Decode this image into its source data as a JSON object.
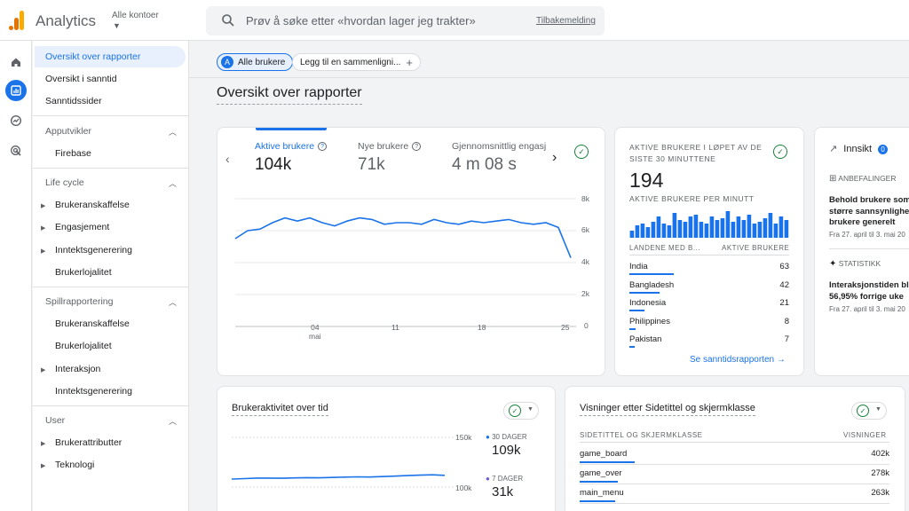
{
  "header": {
    "app_title": "Analytics",
    "account_label": "Alle kontoer",
    "search_placeholder": "Prøv å søke etter «hvordan lager jeg trakter»",
    "feedback_link": "Tilbakemelding"
  },
  "sidebar": {
    "items_top": [
      "Oversikt over rapporter",
      "Oversikt i sanntid",
      "Sanntidssider"
    ],
    "section_apputvikler": "Apputvikler",
    "firebase": "Firebase",
    "section_lifecycle": "Life cycle",
    "lifecycle_items": [
      "Brukeranskaffelse",
      "Engasjement",
      "Inntektsgenerering",
      "Brukerlojalitet"
    ],
    "section_spill": "Spillrapportering",
    "spill_items": [
      "Brukeranskaffelse",
      "Brukerlojalitet",
      "Interaksjon",
      "Inntektsgenerering"
    ],
    "section_user": "User",
    "user_items": [
      "Brukerattributter",
      "Teknologi"
    ]
  },
  "main": {
    "chip_all_users": "Alle brukere",
    "chip_all_avatar": "A",
    "chip_compare": "Legg til en sammenligni...",
    "page_title": "Oversikt over rapporter"
  },
  "kpis": {
    "active_users_label": "Aktive brukere",
    "active_users_value": "104k",
    "new_users_label": "Nye brukere",
    "new_users_value": "71k",
    "avg_engagement_label": "Gjennomsnittlig engasje",
    "avg_engagement_value": "4 m 08 s"
  },
  "chart_data": {
    "type": "line",
    "title": "Aktive brukere",
    "x": [
      0,
      1,
      2,
      3,
      4,
      5,
      6,
      7,
      8,
      9,
      10,
      11,
      12,
      13,
      14,
      15,
      16,
      17,
      18,
      19,
      20,
      21,
      22,
      23,
      24,
      25,
      26,
      27
    ],
    "series": [
      {
        "name": "Aktive brukere",
        "values": [
          5.5,
          6.0,
          6.1,
          6.5,
          6.8,
          6.6,
          6.8,
          6.5,
          6.3,
          6.6,
          6.8,
          6.7,
          6.4,
          6.5,
          6.5,
          6.4,
          6.7,
          6.5,
          6.4,
          6.6,
          6.5,
          6.6,
          6.7,
          6.5,
          6.4,
          6.5,
          6.2,
          4.3
        ]
      }
    ],
    "x_tick_labels": [
      "04\nmai",
      "11",
      "18",
      "25"
    ],
    "y_tick_labels": [
      "8k",
      "6k",
      "4k",
      "2k",
      "0"
    ],
    "ylim": [
      0,
      8
    ]
  },
  "realtime": {
    "title_line1": "AKTIVE BRUKERE I LØPET AV DE",
    "title_line2": "SISTE 30 MINUTTENE",
    "value": "194",
    "per_minute_label": "AKTIVE BRUKERE PER MINUTT",
    "per_minute_values": [
      4,
      7,
      8,
      6,
      9,
      12,
      8,
      7,
      14,
      10,
      9,
      12,
      13,
      9,
      8,
      12,
      10,
      11,
      15,
      9,
      12,
      10,
      13,
      8,
      9,
      11,
      14,
      8,
      12,
      10
    ],
    "col_country": "LANDENE MED B...",
    "col_users": "AKTIVE BRUKERE",
    "rows": [
      {
        "country": "India",
        "users": "63",
        "share": 1.0
      },
      {
        "country": "Bangladesh",
        "users": "42",
        "share": 0.67
      },
      {
        "country": "Indonesia",
        "users": "21",
        "share": 0.33
      },
      {
        "country": "Philippines",
        "users": "8",
        "share": 0.13
      },
      {
        "country": "Pakistan",
        "users": "7",
        "share": 0.11
      }
    ],
    "link": "Se sanntidsrapporten"
  },
  "insights": {
    "title": "Innsikt",
    "count": "0",
    "rec_label": "ANBEFALINGER",
    "rec_text_l1": "Behold brukere som",
    "rec_text_l2": "større sannsynlighet",
    "rec_text_l3": "brukere generelt",
    "rec_date": "Fra 27. april til 3. mai 20",
    "stat_label": "STATISTIKK",
    "stat_text_l1": "Interaksjonstiden ble",
    "stat_text_l2": "56,95% forrige uke",
    "stat_date": "Fra 27. april til 3. mai 20"
  },
  "user_activity": {
    "title": "Brukeraktivitet over tid",
    "y_top": "150k",
    "y_bottom": "100k",
    "legend_30": "30 DAGER",
    "value_30": "109k",
    "legend_7": "7 DAGER",
    "value_7": "31k",
    "line_values": [
      108,
      108.5,
      109,
      109,
      108.8,
      109.2,
      109.5,
      109.3,
      109.6,
      110,
      110.3,
      110.1,
      110.5,
      111,
      111.5,
      112,
      112.3,
      111.8
    ]
  },
  "page_views": {
    "title": "Visninger etter Sidetittel og skjermklasse",
    "col_page": "SIDETITTEL OG SKJERMKLASSE",
    "col_views": "VISNINGER",
    "rows": [
      {
        "page": "game_board",
        "views": "402k",
        "share": 1.0
      },
      {
        "page": "game_over",
        "views": "278k",
        "share": 0.69
      },
      {
        "page": "main_menu",
        "views": "263k",
        "share": 0.65
      }
    ]
  },
  "colors": {
    "accent": "#1a73e8",
    "success": "#188038"
  }
}
